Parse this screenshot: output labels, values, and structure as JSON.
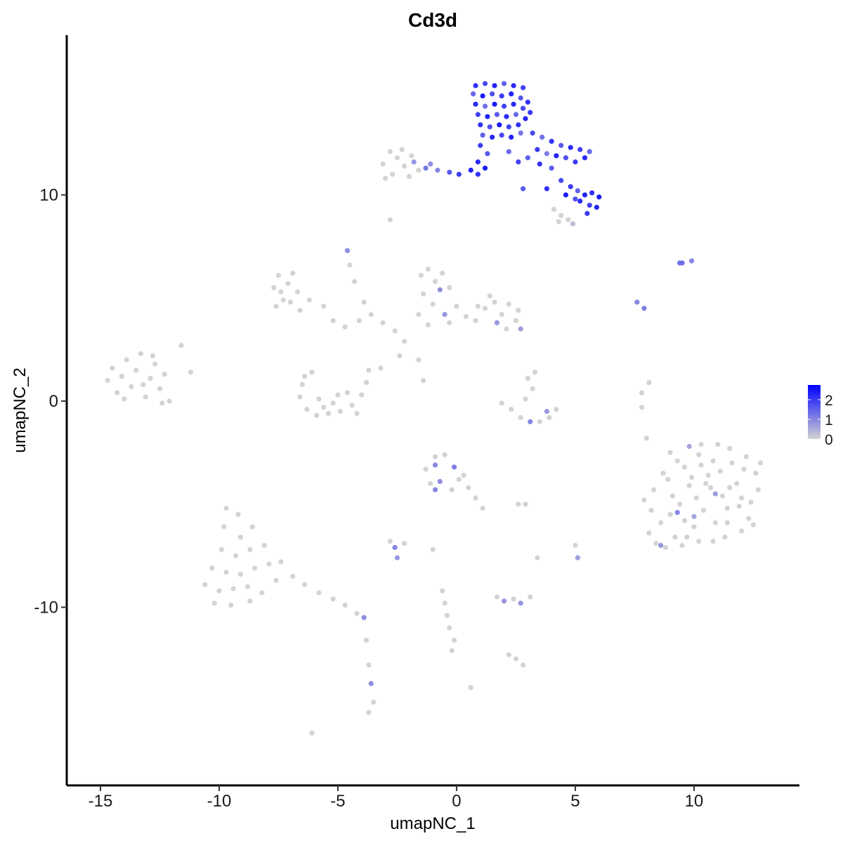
{
  "chart_data": {
    "type": "scatter",
    "title": "Cd3d",
    "x_label": "umapNC_1",
    "y_label": "umapNC_2",
    "xlim": [
      -16.42,
      14.44
    ],
    "ylim": [
      -18.64,
      17.75
    ],
    "xticks": [
      -15,
      -10,
      -5,
      0,
      5,
      10
    ],
    "yticks": [
      -10,
      0,
      10
    ],
    "x": [
      0.8,
      1.2,
      1.6,
      2.0,
      2.4,
      2.8,
      0.7,
      1.1,
      1.5,
      1.9,
      2.3,
      2.7,
      3.0,
      0.8,
      1.2,
      1.6,
      2.0,
      2.4,
      2.8,
      3.1,
      0.9,
      1.3,
      1.7,
      2.1,
      2.5,
      2.9,
      1.0,
      1.4,
      1.8,
      2.2,
      2.6,
      1.1,
      1.5,
      1.9,
      2.3,
      2.7,
      1.0,
      1.3,
      0.9,
      1.2,
      3.2,
      3.6,
      4.0,
      4.4,
      4.8,
      5.2,
      5.6,
      3.4,
      3.8,
      4.2,
      4.6,
      5.0,
      5.4,
      3.0,
      3.5,
      2.6,
      2.2,
      4.0,
      4.4,
      4.8,
      5.1,
      5.4,
      5.7,
      6.0,
      5.2,
      5.6,
      5.9,
      5.0,
      4.6,
      3.8,
      2.8,
      5.5,
      4.1,
      4.4,
      4.7,
      4.9,
      4.3,
      -1.8,
      -1.3,
      -0.8,
      -0.3,
      0.1,
      0.6,
      0.9,
      -1.1,
      -3.1,
      -2.8,
      -2.5,
      -2.2,
      -1.9,
      -2.7,
      -3.0,
      -2.3,
      -1.6,
      -2.0,
      -14.7,
      -14.5,
      -14.3,
      -14.1,
      -13.9,
      -13.7,
      -13.5,
      -13.3,
      -13.1,
      -12.9,
      -12.7,
      -12.5,
      -12.3,
      -14.0,
      -13.2,
      -12.1,
      -12.8,
      -11.6,
      -11.2,
      -12.4,
      -7.7,
      -7.5,
      -7.3,
      -7.1,
      -6.9,
      -6.7,
      -7.6,
      -6.6,
      -7.0,
      -7.4,
      -6.2,
      -5.6,
      -5.2,
      -4.7,
      -4.1,
      -3.6,
      -3.1,
      -2.6,
      -2.2,
      -2.4,
      -3.2,
      -4.5,
      -4.3,
      -3.9,
      -4.6,
      -2.8,
      -1.6,
      -1.4,
      -6.5,
      -6.6,
      -6.3,
      -5.9,
      -5.4,
      -4.9,
      -4.4,
      -4.0,
      -3.8,
      -3.7,
      -5.8,
      -5.2,
      -4.6,
      -6.1,
      -5.0,
      -4.2,
      -5.6,
      -6.4,
      -1.5,
      -1.2,
      -0.9,
      -0.6,
      -0.3,
      -1.4,
      -0.7,
      -1.0,
      -0.5,
      0.0,
      0.4,
      0.8,
      1.2,
      1.6,
      1.9,
      2.2,
      2.5,
      2.7,
      1.7,
      2.1,
      -1.6,
      -1.2,
      -0.3,
      0.9,
      1.4,
      2.6,
      1.9,
      2.3,
      2.7,
      3.1,
      3.5,
      3.9,
      4.2,
      3.8,
      3.0,
      3.2,
      2.9,
      3.3,
      -0.9,
      -0.5,
      -1.3,
      -0.9,
      -0.1,
      0.3,
      -1.1,
      -0.7,
      -0.2,
      0.1,
      0.5,
      0.8,
      1.1,
      -0.9,
      7.9,
      8.3,
      8.6,
      8.9,
      9.2,
      9.4,
      9.6,
      9.8,
      10.0,
      10.2,
      10.4,
      10.6,
      10.8,
      11.0,
      11.2,
      11.4,
      11.6,
      11.8,
      12.0,
      12.2,
      12.4,
      12.6,
      12.8,
      8.1,
      8.8,
      9.0,
      9.5,
      10.1,
      10.7,
      11.3,
      11.9,
      10.3,
      9.3,
      11.5,
      8.6,
      9.3,
      9.8,
      10.9,
      10.0,
      12.3,
      8.2,
      8.7,
      9.1,
      9.7,
      10.3,
      10.9,
      11.5,
      12.1,
      12.7,
      8.4,
      9.0,
      9.6,
      10.2,
      10.8,
      11.4,
      12.0,
      12.5,
      10.5,
      11.1,
      9.9,
      -9.7,
      -9.2,
      -9.8,
      -9.1,
      -8.6,
      -9.9,
      -9.3,
      -8.7,
      -8.1,
      -10.3,
      -9.7,
      -9.1,
      -8.5,
      -7.9,
      -7.4,
      -10.6,
      -10.0,
      -9.4,
      -8.8,
      -8.2,
      -7.6,
      -10.2,
      -9.5,
      -8.7,
      -6.9,
      -6.4,
      -5.8,
      -5.2,
      -4.7,
      -4.2,
      -3.9,
      -3.8,
      -3.7,
      -3.6,
      -3.5,
      -3.7,
      -2.8,
      -2.6,
      -2.5,
      -2.2,
      -1.0,
      -0.6,
      -0.5,
      -0.4,
      -0.3,
      -0.1,
      -0.2,
      1.7,
      2.0,
      2.4,
      2.7,
      3.1,
      2.5,
      2.8,
      2.2,
      0.6,
      -6.1,
      5.0,
      5.1,
      2.6,
      2.9,
      3.4,
      7.8,
      7.8,
      8.1,
      8.0,
      9.4,
      9.5,
      9.9,
      7.6,
      7.9
    ],
    "y": [
      15.3,
      15.4,
      15.3,
      15.4,
      15.3,
      15.2,
      14.9,
      14.8,
      14.9,
      14.8,
      14.9,
      14.7,
      14.5,
      14.4,
      14.3,
      14.4,
      14.3,
      14.4,
      14.2,
      14.0,
      13.9,
      13.8,
      13.9,
      13.8,
      13.9,
      13.7,
      13.4,
      13.3,
      13.4,
      13.3,
      13.4,
      12.9,
      12.8,
      12.9,
      12.8,
      13.0,
      12.4,
      12.0,
      11.6,
      11.3,
      13.0,
      12.8,
      12.6,
      12.4,
      12.3,
      12.2,
      12.1,
      12.2,
      12.0,
      11.9,
      11.8,
      11.6,
      11.8,
      11.8,
      11.5,
      11.6,
      12.1,
      11.3,
      10.7,
      10.4,
      10.2,
      10.0,
      10.1,
      9.9,
      9.7,
      9.5,
      9.4,
      9.8,
      10.0,
      10.3,
      10.3,
      9.1,
      9.3,
      9.0,
      8.8,
      8.6,
      8.7,
      11.6,
      11.3,
      11.2,
      11.1,
      11.0,
      11.2,
      11.0,
      11.5,
      11.5,
      12.1,
      11.8,
      11.4,
      11.9,
      11.0,
      10.8,
      12.2,
      11.2,
      10.9,
      1.0,
      1.6,
      0.4,
      1.2,
      2.0,
      0.7,
      1.5,
      2.3,
      0.2,
      1.1,
      1.8,
      0.6,
      1.3,
      0.1,
      0.8,
      0.0,
      2.2,
      2.7,
      1.4,
      -0.1,
      5.5,
      6.1,
      4.9,
      5.7,
      6.2,
      5.3,
      4.6,
      4.4,
      4.8,
      5.3,
      4.9,
      4.6,
      3.9,
      3.6,
      3.9,
      4.2,
      3.8,
      3.4,
      2.9,
      2.2,
      1.6,
      6.6,
      5.8,
      4.8,
      7.3,
      8.8,
      2.0,
      1.0,
      0.8,
      0.2,
      -0.4,
      -0.7,
      -0.6,
      -0.5,
      -0.2,
      0.3,
      0.9,
      1.5,
      0.1,
      -0.1,
      0.4,
      1.4,
      0.3,
      -0.6,
      -0.3,
      1.2,
      6.1,
      6.4,
      5.8,
      6.2,
      5.5,
      5.2,
      5.4,
      4.7,
      4.2,
      4.6,
      4.1,
      3.9,
      4.5,
      4.8,
      4.2,
      4.7,
      3.9,
      3.5,
      3.8,
      3.5,
      4.2,
      3.7,
      3.8,
      4.6,
      5.1,
      4.4,
      -0.1,
      -0.4,
      -0.8,
      -1.0,
      -1.0,
      -0.8,
      -0.4,
      -0.5,
      1.1,
      0.6,
      0.1,
      1.4,
      -2.7,
      -2.6,
      -3.3,
      -3.1,
      -3.2,
      -3.6,
      -4.0,
      -3.9,
      -4.3,
      -3.8,
      -4.2,
      -4.7,
      -5.2,
      -4.3,
      -4.8,
      -4.3,
      -5.9,
      -3.8,
      -6.6,
      -5.0,
      -3.2,
      -4.1,
      -6.1,
      -2.6,
      -5.3,
      -3.6,
      -6.8,
      -2.1,
      -4.6,
      -5.9,
      -3.0,
      -4.0,
      -6.3,
      -2.7,
      -4.9,
      -3.5,
      -3.0,
      -6.4,
      -7.1,
      -5.5,
      -7.0,
      -4.7,
      -4.2,
      -6.6,
      -5.1,
      -3.1,
      -2.9,
      -2.3,
      -7.0,
      -5.4,
      -2.2,
      -4.5,
      -5.6,
      -5.7,
      -5.3,
      -3.5,
      -4.6,
      -6.6,
      -2.1,
      -5.9,
      -4.2,
      -3.3,
      -4.3,
      -6.9,
      -2.5,
      -5.8,
      -6.8,
      -2.9,
      -5.2,
      -4.7,
      -6.0,
      -4.0,
      -3.4,
      -3.7,
      -5.2,
      -5.5,
      -6.1,
      -6.6,
      -6.1,
      -7.2,
      -7.5,
      -7.2,
      -7.0,
      -8.1,
      -8.3,
      -8.4,
      -8.1,
      -7.9,
      -7.8,
      -8.9,
      -9.2,
      -9.1,
      -9.0,
      -9.3,
      -8.7,
      -9.8,
      -9.9,
      -9.7,
      -8.5,
      -8.9,
      -9.3,
      -9.6,
      -9.9,
      -10.3,
      -10.5,
      -11.6,
      -12.8,
      -13.7,
      -14.6,
      -15.1,
      -6.8,
      -7.1,
      -7.6,
      -6.9,
      -7.2,
      -9.2,
      -9.8,
      -10.4,
      -11.0,
      -11.6,
      -12.1,
      -9.5,
      -9.7,
      -9.6,
      -9.8,
      -9.5,
      -12.5,
      -12.8,
      -12.3,
      -13.9,
      -16.1,
      -7.0,
      -7.6,
      -5.0,
      -5.0,
      -7.6,
      0.4,
      -0.3,
      0.9,
      -1.8,
      6.7,
      6.7,
      6.8,
      4.8,
      4.5
    ],
    "values": [
      2.1,
      1.8,
      2.3,
      1.5,
      2.2,
      1.9,
      1.4,
      2.4,
      1.7,
      2.0,
      2.3,
      1.6,
      2.1,
      2.2,
      1.3,
      2.4,
      1.9,
      2.2,
      1.8,
      2.0,
      1.9,
      2.3,
      1.6,
      2.2,
      1.4,
      2.3,
      2.1,
      1.7,
      2.4,
      1.9,
      2.1,
      1.5,
      2.2,
      1.8,
      2.3,
      1.2,
      2.0,
      1.6,
      2.2,
      2.4,
      1.8,
      1.3,
      2.1,
      1.6,
      2.2,
      1.9,
      1.4,
      2.0,
      1.1,
      2.3,
      1.7,
      2.0,
      2.2,
      1.5,
      2.1,
      1.9,
      1.4,
      1.6,
      1.8,
      2.0,
      1.5,
      2.3,
      2.1,
      2.4,
      2.2,
      1.9,
      2.3,
      1.7,
      2.4,
      2.1,
      1.6,
      2.0,
      0,
      0,
      0,
      0.3,
      0,
      0.8,
      1.2,
      1.0,
      1.6,
      1.9,
      2.3,
      2.1,
      0.9,
      0,
      0,
      0,
      0,
      0,
      0,
      0,
      0,
      0,
      0,
      0,
      0,
      0,
      0,
      0,
      0,
      0,
      0,
      0,
      0,
      0,
      0,
      0,
      0,
      0,
      0,
      0,
      0,
      0,
      0,
      0,
      0,
      0,
      0,
      0,
      0,
      0,
      0,
      0,
      0,
      0,
      0,
      0,
      0,
      0,
      0,
      0,
      0,
      0,
      0,
      0,
      0,
      0,
      0,
      0.9,
      0,
      0,
      0,
      0,
      0,
      0,
      0,
      0,
      0,
      0,
      0,
      0,
      0,
      0,
      0,
      0,
      0,
      0,
      0,
      0,
      0,
      0,
      0,
      0,
      0,
      0,
      0,
      0.9,
      0,
      0.8,
      0,
      0,
      0,
      0,
      0,
      0,
      0,
      0,
      0.7,
      0.8,
      0,
      0,
      0,
      0,
      0,
      0,
      0,
      0,
      0,
      0,
      1.0,
      0,
      0,
      0,
      0.8,
      0,
      0,
      0,
      0,
      0,
      0,
      0,
      1.0,
      1.1,
      0,
      0,
      0.9,
      0,
      0,
      0,
      0,
      0,
      1.0,
      0,
      0,
      0,
      0,
      0,
      0,
      0,
      0,
      0,
      0,
      0,
      0,
      0,
      0,
      0,
      0,
      0,
      0,
      0,
      0,
      0,
      0,
      0,
      0,
      0,
      0,
      0,
      0,
      0,
      0,
      0,
      0,
      0,
      0,
      0.8,
      1.0,
      0.6,
      0.7,
      0.6,
      0,
      0,
      0,
      0,
      0,
      0,
      0,
      0,
      0,
      0,
      0,
      0,
      0,
      0,
      0,
      0,
      0,
      0,
      0,
      0,
      0,
      0,
      0,
      0,
      0,
      0,
      0,
      0,
      0,
      0,
      0,
      0,
      0,
      0,
      0,
      0,
      0,
      0,
      0,
      0,
      0,
      0,
      0,
      0,
      0,
      0,
      0,
      0,
      0,
      0,
      0,
      0.9,
      0,
      0,
      0.9,
      0,
      0,
      0,
      1.0,
      0.8,
      0,
      0,
      0,
      0,
      0,
      0,
      0,
      0,
      0,
      0.8,
      0,
      0.8,
      0,
      0,
      0,
      0,
      0,
      0,
      0,
      0.7,
      0,
      0,
      0,
      0,
      0,
      0,
      0,
      1.3,
      1.3,
      1.0,
      1.0,
      1.1
    ],
    "colorbar": {
      "lim": [
        0,
        2.75
      ],
      "ticks": [
        0,
        1,
        2
      ],
      "low_color": "#D3D3D3",
      "high_color": "#0000FF"
    }
  }
}
